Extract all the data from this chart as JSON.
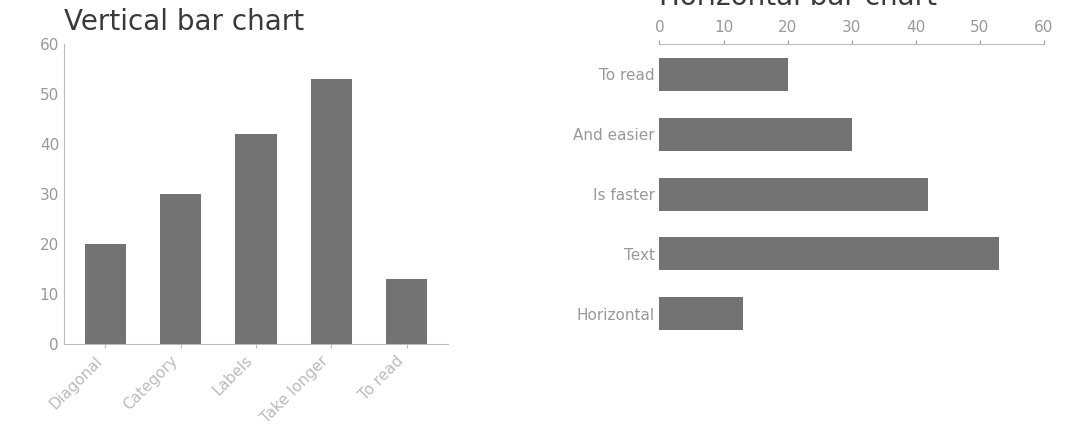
{
  "vertical": {
    "title": "Vertical bar chart",
    "categories": [
      "Diagonal",
      "Category",
      "Labels",
      "Take longer",
      "To read"
    ],
    "values": [
      20,
      30,
      42,
      53,
      13
    ],
    "bar_color": "#737373",
    "ylim": [
      0,
      60
    ],
    "yticks": [
      0,
      10,
      20,
      30,
      40,
      50,
      60
    ]
  },
  "horizontal": {
    "title": "Horizontal bar chart",
    "categories": [
      "Horizontal",
      "Text",
      "Is faster",
      "And easier",
      "To read"
    ],
    "values": [
      20,
      30,
      42,
      53,
      13
    ],
    "bar_color": "#737373",
    "xlim": [
      0,
      60
    ],
    "xticks": [
      0,
      10,
      20,
      30,
      40,
      50,
      60
    ]
  },
  "bg_color": "#ffffff",
  "title_fontsize": 20,
  "tick_fontsize": 11,
  "title_color": "#3a3a3a",
  "tick_color": "#999999",
  "spine_color": "#bbbbbb"
}
